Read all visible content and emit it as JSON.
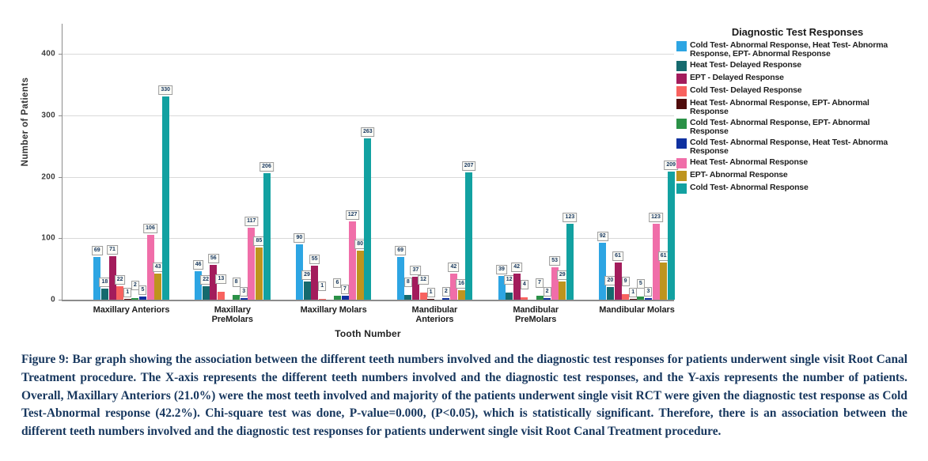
{
  "figure": {
    "caption": "Figure 9: Bar graph showing the association between the different teeth numbers involved and the diagnostic test responses for patients underwent single visit Root Canal Treatment procedure. The X-axis represents the different teeth numbers involved and the diagnostic test responses, and the Y-axis represents the number of patients. Overall, Maxillary Anteriors (21.0%) were the most teeth involved and majority of the patients underwent single visit RCT were given the diagnostic test response as Cold Test-Abnormal response (42.2%). Chi-square test was done, P-value=0.000, (P<0.05), which is statistically significant. Therefore, there is an association between the different teeth numbers involved and the diagnostic test responses for patients underwent single visit Root Canal Treatment procedure."
  },
  "chart_data": {
    "type": "bar",
    "title": "",
    "xlabel": "Tooth Number",
    "ylabel": "Number of Patients",
    "ylim": [
      0,
      440
    ],
    "yticks": [
      0,
      100,
      200,
      300,
      400
    ],
    "grid": true,
    "legend_position": "right",
    "legend_title": "Diagnostic Test Responses",
    "categories": [
      "Maxillary Anteriors",
      "Maxillary PreMolars",
      "Maxillary Molars",
      "Mandibular Anteriors",
      "Mandibular PreMolars",
      "Mandibular Molars"
    ],
    "category_display": [
      "Maxillary Anteriors",
      "Maxillary\nPreMolars",
      "Maxillary Molars",
      "Mandibular\nAnteriors",
      "Mandibular\nPreMolars",
      "Mandibular Molars"
    ],
    "series": [
      {
        "name": "Cold Test- Abnormal Response, Heat Test- Abnormal Response, EPT- Abnormal Response",
        "display": "Cold Test- Abnormal Response, Heat Test- Abnorma\nResponse, EPT- Abnormal Response",
        "color": "#2da5e3",
        "values": [
          69,
          46,
          90,
          69,
          39,
          92
        ]
      },
      {
        "name": "Heat Test- Delayed Response",
        "display": "Heat Test- Delayed Response",
        "color": "#156a6e",
        "values": [
          18,
          22,
          29,
          8,
          12,
          20
        ]
      },
      {
        "name": "EPT - Delayed Response",
        "display": "EPT - Delayed Response",
        "color": "#a31c5c",
        "values": [
          71,
          56,
          55,
          37,
          42,
          61
        ]
      },
      {
        "name": "Cold Test- Delayed Response",
        "display": "Cold Test- Delayed Response",
        "color": "#f8625f",
        "values": [
          22,
          13,
          1,
          12,
          4,
          9
        ]
      },
      {
        "name": "Heat Test- Abnormal Response, EPT- Abnormal Response",
        "display": "Heat Test- Abnormal Response, EPT- Abnormal\nResponse",
        "color": "#500c0c",
        "values": [
          1,
          0,
          0,
          1,
          0,
          1
        ]
      },
      {
        "name": "Cold Test- Abnormal Response, EPT- Abnormal Response",
        "display": "Cold Test- Abnormal Response, EPT- Abnormal\nResponse",
        "color": "#2a9147",
        "values": [
          2,
          8,
          6,
          0,
          7,
          5
        ]
      },
      {
        "name": "Cold Test- Abnormal Response, Heat Test- Abnormal Response",
        "display": "Cold Test- Abnormal Response, Heat Test- Abnorma\nResponse",
        "color": "#0f31a0",
        "values": [
          5,
          3,
          7,
          2,
          2,
          3
        ]
      },
      {
        "name": "Heat Test- Abnormal Response",
        "display": "Heat Test- Abnormal Response",
        "color": "#f06ea9",
        "values": [
          106,
          117,
          127,
          42,
          53,
          123
        ]
      },
      {
        "name": "EPT- Abnormal Response",
        "display": "EPT- Abnormal Response",
        "color": "#be941e",
        "values": [
          43,
          85,
          80,
          16,
          29,
          61
        ]
      },
      {
        "name": "Cold Test- Abnormal Response",
        "display": "Cold Test- Abnormal Response",
        "color": "#12a1a1",
        "values": [
          330,
          206,
          263,
          207,
          123,
          209
        ]
      }
    ]
  }
}
